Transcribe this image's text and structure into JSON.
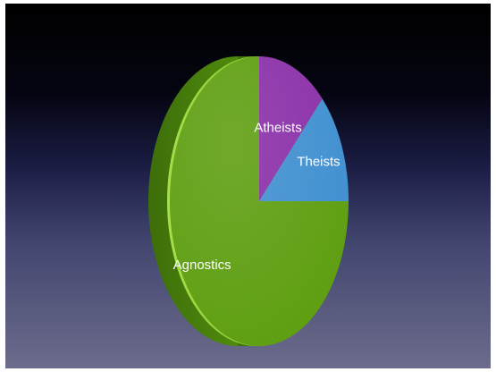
{
  "chart_data": {
    "type": "pie",
    "title": "",
    "slices": [
      {
        "label": "Atheists",
        "value": 12.5,
        "color": "#8a2fa8"
      },
      {
        "label": "Theists",
        "value": 12.5,
        "color": "#3f8fd0"
      },
      {
        "label": "Agnostics",
        "value": 75,
        "color": "#5e9e10"
      }
    ],
    "start_angle_deg": 0,
    "direction": "clockwise",
    "style": "3d-tilted",
    "legend": "none",
    "labels_on_slices": true
  }
}
